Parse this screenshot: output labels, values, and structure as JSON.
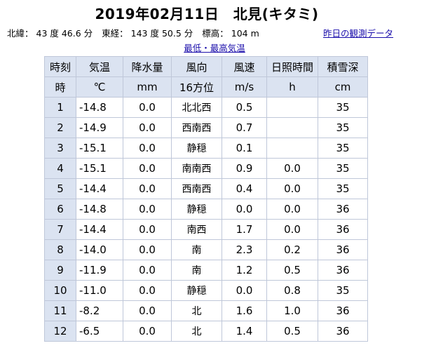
{
  "header": {
    "title": "2019年02月11日　北見(キタミ)",
    "lat_label": "北緯：",
    "lat_value": "43 度 46.6 分",
    "lon_label": "東経：",
    "lon_value": "143 度 50.5 分",
    "alt_label": "標高：",
    "alt_value": "104 m",
    "prev_day_link": "昨日の観測データ",
    "minmax_link": "最低・最高気温"
  },
  "table": {
    "headers": [
      "時刻",
      "気温",
      "降水量",
      "風向",
      "風速",
      "日照時間",
      "積雪深"
    ],
    "units": [
      "時",
      "℃",
      "mm",
      "16方位",
      "m/s",
      "h",
      "cm"
    ],
    "rows": [
      {
        "hour": "1",
        "temp": "-14.8",
        "precip": "0.0",
        "wind_dir": "北北西",
        "wind_speed": "0.5",
        "sunshine": "",
        "snow": "35"
      },
      {
        "hour": "2",
        "temp": "-14.9",
        "precip": "0.0",
        "wind_dir": "西南西",
        "wind_speed": "0.7",
        "sunshine": "",
        "snow": "35"
      },
      {
        "hour": "3",
        "temp": "-15.1",
        "precip": "0.0",
        "wind_dir": "静穏",
        "wind_speed": "0.1",
        "sunshine": "",
        "snow": "35"
      },
      {
        "hour": "4",
        "temp": "-15.1",
        "precip": "0.0",
        "wind_dir": "南南西",
        "wind_speed": "0.9",
        "sunshine": "0.0",
        "snow": "35"
      },
      {
        "hour": "5",
        "temp": "-14.4",
        "precip": "0.0",
        "wind_dir": "西南西",
        "wind_speed": "0.4",
        "sunshine": "0.0",
        "snow": "35"
      },
      {
        "hour": "6",
        "temp": "-14.8",
        "precip": "0.0",
        "wind_dir": "静穏",
        "wind_speed": "0.0",
        "sunshine": "0.0",
        "snow": "36"
      },
      {
        "hour": "7",
        "temp": "-14.4",
        "precip": "0.0",
        "wind_dir": "南西",
        "wind_speed": "1.7",
        "sunshine": "0.0",
        "snow": "36"
      },
      {
        "hour": "8",
        "temp": "-14.0",
        "precip": "0.0",
        "wind_dir": "南",
        "wind_speed": "2.3",
        "sunshine": "0.2",
        "snow": "36"
      },
      {
        "hour": "9",
        "temp": "-11.9",
        "precip": "0.0",
        "wind_dir": "南",
        "wind_speed": "1.2",
        "sunshine": "0.5",
        "snow": "36"
      },
      {
        "hour": "10",
        "temp": "-11.0",
        "precip": "0.0",
        "wind_dir": "静穏",
        "wind_speed": "0.0",
        "sunshine": "0.8",
        "snow": "35"
      },
      {
        "hour": "11",
        "temp": "-8.2",
        "precip": "0.0",
        "wind_dir": "北",
        "wind_speed": "1.6",
        "sunshine": "1.0",
        "snow": "36"
      },
      {
        "hour": "12",
        "temp": "-6.5",
        "precip": "0.0",
        "wind_dir": "北",
        "wind_speed": "1.4",
        "sunshine": "0.5",
        "snow": "36"
      }
    ]
  }
}
